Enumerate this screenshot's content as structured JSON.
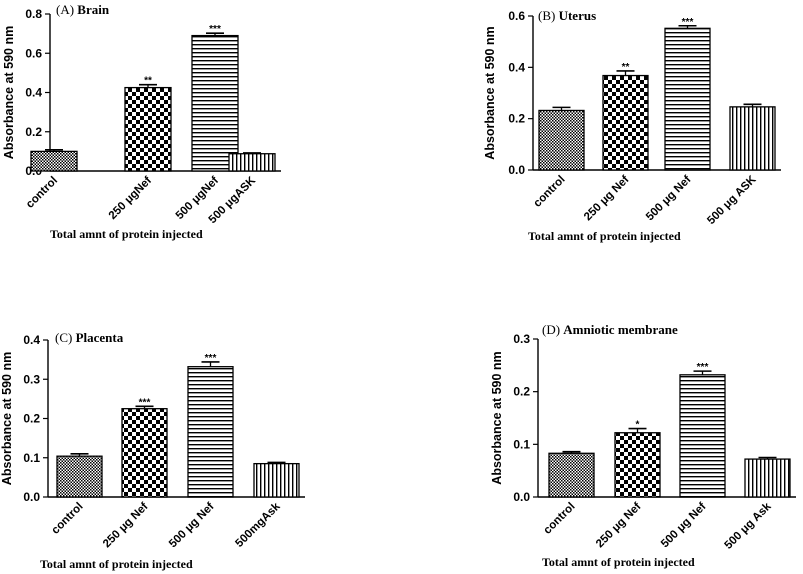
{
  "chart_data": [
    {
      "type": "bar",
      "panel": "(A)",
      "title": "Brain",
      "ylabel": "Absorbance at 590 nm",
      "xlabel": "Total amnt of protein injected",
      "ylim": [
        0,
        0.8
      ],
      "yticks": [
        "0.0",
        "0.2",
        "0.4",
        "0.6",
        "0.8"
      ],
      "categories": [
        "control",
        "250 μgNef",
        "500 μgNef",
        "500 μgASK"
      ],
      "values": [
        0.1,
        0.425,
        0.69,
        0.088
      ],
      "errors": [
        0.008,
        0.015,
        0.012,
        0.004
      ],
      "significance": [
        "",
        "**",
        "***",
        ""
      ],
      "patterns": [
        "checker-fine",
        "checker",
        "hlines",
        "vlines"
      ]
    },
    {
      "type": "bar",
      "panel": "(B)",
      "title": "Uterus",
      "ylabel": "Absorbance at 590 nm",
      "xlabel": "Total amnt of protein injected",
      "ylim": [
        0,
        0.6
      ],
      "yticks": [
        "0.0",
        "0.2",
        "0.4",
        "0.6"
      ],
      "categories": [
        "control",
        "250 μg Nef",
        "500 μg Nef",
        "500 μg ASK"
      ],
      "values": [
        0.232,
        0.368,
        0.552,
        0.246
      ],
      "errors": [
        0.012,
        0.018,
        0.01,
        0.01
      ],
      "significance": [
        "",
        "**",
        "***",
        ""
      ],
      "patterns": [
        "checker-fine",
        "checker",
        "hlines",
        "vlines"
      ]
    },
    {
      "type": "bar",
      "panel": "(C)",
      "title": "Placenta",
      "ylabel": "Absorbance at 590 nm",
      "xlabel": "Total amnt of protein injected",
      "ylim": [
        0,
        0.4
      ],
      "yticks": [
        "0.0",
        "0.1",
        "0.2",
        "0.3",
        "0.4"
      ],
      "categories": [
        "control",
        "250 μg Nef",
        "500 μg Nef",
        "500mgAsk"
      ],
      "values": [
        0.104,
        0.225,
        0.332,
        0.085
      ],
      "errors": [
        0.006,
        0.006,
        0.012,
        0.003
      ],
      "significance": [
        "",
        "***",
        "***",
        ""
      ],
      "patterns": [
        "checker-fine",
        "checker",
        "hlines",
        "vlines"
      ]
    },
    {
      "type": "bar",
      "panel": "(D)",
      "title": "Amniotic membrane",
      "ylabel": "Absorbance at 590 nm",
      "xlabel": "Total amnt of protein injected",
      "ylim": [
        0,
        0.3
      ],
      "yticks": [
        "0.0",
        "0.1",
        "0.2",
        "0.3"
      ],
      "categories": [
        "control",
        "250 μg Nef",
        "500 μg Nef",
        "500  μg Ask"
      ],
      "values": [
        0.083,
        0.122,
        0.232,
        0.072
      ],
      "errors": [
        0.003,
        0.008,
        0.007,
        0.003
      ],
      "significance": [
        "",
        "*",
        "***",
        ""
      ],
      "patterns": [
        "checker-fine",
        "checker",
        "hlines",
        "vlines"
      ]
    }
  ]
}
